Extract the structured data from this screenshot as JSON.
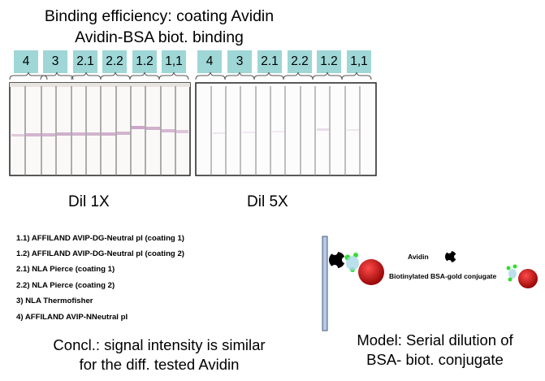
{
  "header": {
    "line1": "Binding efficiency: coating Avidin",
    "line2": "Avidin-BSA biot. binding"
  },
  "panels": [
    {
      "labels": [
        "4",
        "3",
        "2.1",
        "2.2",
        "1.2",
        "1,1"
      ],
      "dilution": "Dil 1X"
    },
    {
      "labels": [
        "4",
        "3",
        "2.1",
        "2.2",
        "1.2",
        "1,1"
      ],
      "dilution": "Dil 5X"
    }
  ],
  "legend": [
    "1.1) AFFILAND AVIP-DG-Neutral pI (coating 1)",
    "1.2) AFFILAND  AVIP-DG-Neutral pI (coating 2)",
    "2.1) NLA Pierce (coating 1)",
    "2.2) NLA Pierce (coating 2)",
    "3) NLA Thermofisher",
    "4) AFFILAND AVIP-NNeutral pI"
  ],
  "conclusion": {
    "line1": "Concl.: signal intensity is similar",
    "line2": "for the diff. tested Avidin"
  },
  "model_diagram": {
    "avidin_label": "Avidin",
    "conjugate_label": "Biotinylated BSA-gold conjugate"
  },
  "model_caption": {
    "line1": "Model: Serial dilution of",
    "line2": "BSA- biot. conjugate"
  },
  "colors": {
    "label_bg": "#9fd6d6",
    "band": "#c9a2c6",
    "gold_sphere": "#cc1010",
    "biotin": "#33dd33",
    "avidin": "#000000",
    "plate": "#b7c8e6"
  }
}
